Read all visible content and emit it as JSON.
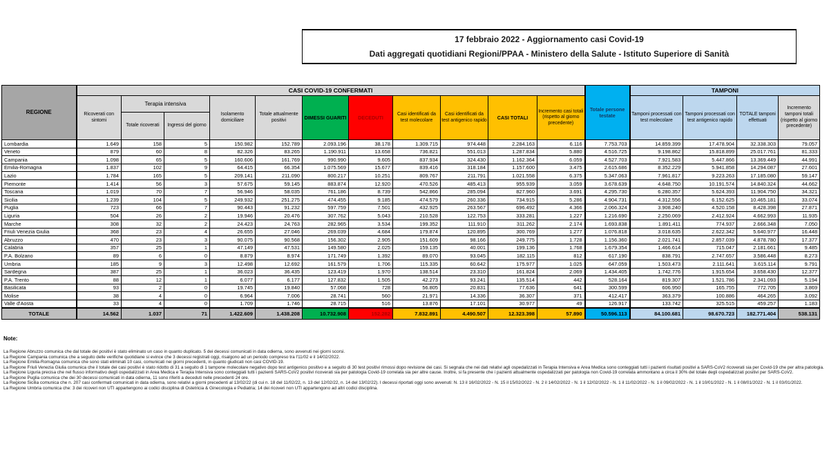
{
  "title": {
    "line1": "17 febbraio 2022 - Aggiornamento casi Covid-19",
    "line2": "Dati aggregati quotidiani Regioni/PPAA - Ministero della Salute - Istituto Superiore di Sanità"
  },
  "colors": {
    "green_dimessi": "#00b050",
    "red_deceduti": "#ff0000",
    "gold_casi": "#ffc000",
    "cyan_testate": "#00b0f0",
    "lightblue_tamponi": "#bdd7ee",
    "gray_regione_header": "#a6a6a6",
    "gray_subheader": "#d9d9d9",
    "gray_total_row": "#bfbfbf"
  },
  "table": {
    "group_casi": "CASI COVID-19 CONFERMATI",
    "group_tamponi": "TAMPONI",
    "col_regione": "REGIONE",
    "col_ricoverati": "Ricoverati con sintomi",
    "col_terapia_intensiva": "Terapia intensiva",
    "col_ti_totale": "Totale ricoverati",
    "col_ti_ingressi": "Ingressi del giorno",
    "col_isolamento": "Isolamento domiciliare",
    "col_attualmente_positivi": "Totale attualmente positivi",
    "col_dimessi": "DIMESSI GUARITI",
    "col_deceduti": "DECEDUTI",
    "col_casi_molecolare": "Casi identificati da test molecolare",
    "col_casi_antigenico": "Casi identificati da test antigenico rapido",
    "col_casi_totali": "CASI TOTALI",
    "col_incremento_casi": "Incremento casi totali (rispetto al giorno precedente)",
    "col_persone_testate": "Totale persone testate",
    "col_tamponi_molecolare": "Tamponi processati con test molecolare",
    "col_tamponi_antigenico": "Tamponi processati con test antigenico rapido",
    "col_tamponi_totale": "TOTALE tamponi effettuati",
    "col_incremento_tamponi": "Incremento tamponi totali (rispetto al giorno precedente)",
    "rows": [
      [
        "Lombardia",
        "1.649",
        "158",
        "5",
        "150.982",
        "152.789",
        "2.093.196",
        "38.178",
        "1.309.715",
        "974.448",
        "2.284.163",
        "6.116",
        "7.753.703",
        "14.859.399",
        "17.478.904",
        "32.338.303",
        "79.057"
      ],
      [
        "Veneto",
        "879",
        "60",
        "8",
        "82.326",
        "83.265",
        "1.190.911",
        "13.658",
        "736.821",
        "551.013",
        "1.287.834",
        "5.880",
        "4.516.725",
        "9.198.862",
        "15.818.899",
        "25.017.761",
        "81.333"
      ],
      [
        "Campania",
        "1.098",
        "65",
        "5",
        "160.606",
        "161.769",
        "990.990",
        "9.605",
        "837.934",
        "324.430",
        "1.162.364",
        "6.059",
        "4.527.703",
        "7.921.583",
        "5.447.866",
        "13.369.449",
        "44.991"
      ],
      [
        "Emilia-Romagna",
        "1.837",
        "102",
        "9",
        "64.415",
        "66.354",
        "1.075.569",
        "15.677",
        "839.416",
        "318.184",
        "1.157.600",
        "3.475",
        "2.615.686",
        "8.352.229",
        "5.941.858",
        "14.294.087",
        "27.601"
      ],
      [
        "Lazio",
        "1.784",
        "165",
        "5",
        "209.141",
        "211.090",
        "800.217",
        "10.251",
        "809.767",
        "211.791",
        "1.021.558",
        "6.375",
        "5.347.063",
        "7.961.817",
        "9.223.263",
        "17.185.080",
        "59.147"
      ],
      [
        "Piemonte",
        "1.414",
        "56",
        "3",
        "57.675",
        "59.145",
        "883.874",
        "12.920",
        "470.526",
        "485.413",
        "955.939",
        "3.059",
        "3.678.639",
        "4.648.750",
        "10.191.574",
        "14.840.324",
        "44.662"
      ],
      [
        "Toscana",
        "1.019",
        "70",
        "7",
        "56.946",
        "58.035",
        "761.186",
        "8.739",
        "542.866",
        "285.094",
        "827.960",
        "3.691",
        "4.295.730",
        "6.280.357",
        "5.624.393",
        "11.904.750",
        "34.321"
      ],
      [
        "Sicilia",
        "1.239",
        "104",
        "5",
        "249.932",
        "251.275",
        "474.455",
        "9.185",
        "474.579",
        "260.336",
        "734.915",
        "5.286",
        "4.904.731",
        "4.312.556",
        "6.152.625",
        "10.465.181",
        "33.074"
      ],
      [
        "Puglia",
        "723",
        "66",
        "7",
        "90.443",
        "91.232",
        "597.759",
        "7.501",
        "432.925",
        "263.567",
        "696.492",
        "4.366",
        "2.066.324",
        "3.908.240",
        "4.520.158",
        "8.428.398",
        "27.871"
      ],
      [
        "Liguria",
        "504",
        "26",
        "2",
        "19.946",
        "20.476",
        "307.762",
        "5.043",
        "210.528",
        "122.753",
        "333.281",
        "1.227",
        "1.216.690",
        "2.250.069",
        "2.412.924",
        "4.662.993",
        "11.935"
      ],
      [
        "Marche",
        "308",
        "32",
        "2",
        "24.423",
        "24.763",
        "282.965",
        "3.534",
        "199.352",
        "111.910",
        "311.262",
        "2.174",
        "1.693.838",
        "1.891.411",
        "774.937",
        "2.666.348",
        "7.050"
      ],
      [
        "Friuli Venezia Giulia",
        "368",
        "23",
        "4",
        "26.655",
        "27.046",
        "269.039",
        "4.684",
        "179.874",
        "120.895",
        "300.769",
        "1.277",
        "1.076.818",
        "3.018.635",
        "2.622.342",
        "5.640.977",
        "16.448"
      ],
      [
        "Abruzzo",
        "470",
        "23",
        "3",
        "90.075",
        "90.568",
        "156.302",
        "2.905",
        "151.609",
        "98.166",
        "249.775",
        "1.728",
        "1.156.360",
        "2.021.741",
        "2.857.039",
        "4.878.780",
        "17.377"
      ],
      [
        "Calabria",
        "357",
        "25",
        "1",
        "47.149",
        "47.531",
        "149.580",
        "2.025",
        "159.135",
        "40.001",
        "199.136",
        "1.768",
        "1.679.354",
        "1.466.614",
        "715.047",
        "2.181.661",
        "9.485"
      ],
      [
        "P.A. Bolzano",
        "89",
        "6",
        "0",
        "8.879",
        "8.974",
        "171.749",
        "1.392",
        "89.070",
        "93.045",
        "182.115",
        "812",
        "617.190",
        "838.791",
        "2.747.657",
        "3.586.448",
        "8.273"
      ],
      [
        "Umbria",
        "185",
        "9",
        "3",
        "12.498",
        "12.692",
        "161.579",
        "1.706",
        "115.335",
        "60.642",
        "175.977",
        "1.025",
        "647.059",
        "1.503.473",
        "2.111.641",
        "3.615.114",
        "9.791"
      ],
      [
        "Sardegna",
        "387",
        "25",
        "1",
        "36.023",
        "36.435",
        "123.419",
        "1.970",
        "138.514",
        "23.310",
        "161.824",
        "2.069",
        "1.434.405",
        "1.742.776",
        "1.915.654",
        "3.658.430",
        "12.377"
      ],
      [
        "P.A. Trento",
        "88",
        "12",
        "1",
        "6.077",
        "6.177",
        "127.832",
        "1.505",
        "42.273",
        "93.241",
        "135.514",
        "442",
        "528.164",
        "819.307",
        "1.521.786",
        "2.341.093",
        "5.194"
      ],
      [
        "Basilicata",
        "93",
        "2",
        "0",
        "19.745",
        "19.840",
        "57.068",
        "728",
        "56.805",
        "20.831",
        "77.636",
        "641",
        "300.599",
        "606.950",
        "165.755",
        "772.705",
        "3.869"
      ],
      [
        "Molise",
        "38",
        "4",
        "0",
        "6.964",
        "7.006",
        "28.741",
        "560",
        "21.971",
        "14.336",
        "36.307",
        "371",
        "412.417",
        "363.379",
        "100.886",
        "464.265",
        "3.092"
      ],
      [
        "Valle d'Aosta",
        "33",
        "4",
        "0",
        "1.709",
        "1.746",
        "28.715",
        "516",
        "13.876",
        "17.101",
        "30.977",
        "49",
        "126.917",
        "133.742",
        "325.515",
        "459.257",
        "1.183"
      ]
    ],
    "total": [
      "TOTALE",
      "14.562",
      "1.037",
      "71",
      "1.422.609",
      "1.438.208",
      "10.732.908",
      "152.282",
      "7.832.891",
      "4.490.507",
      "12.323.398",
      "57.890",
      "50.596.113",
      "84.100.681",
      "98.670.723",
      "182.771.404",
      "538.131"
    ]
  },
  "notes": {
    "heading": "Note:",
    "items": [
      "La Regione Abruzzo  comunica che dal totale dei positivi è stato eliminato un caso in quanto duplicato. 5 dei decessi comunicati in data odierna, sono avvenuti nei giorni scorsi.",
      "La Regione Campania comunica che a seguito delle verifiche quotidiane si evince che 3 decessi registrati oggi, risalgono ad un periodo compreso tra l'11/02 e il 14/02/2022.",
      "La Regione Emilia-Romagna  comunica che sono stati eliminati 10 casi, comunicati nei giorni precedenti, in quanto giudicati non casi COVID-19.",
      "La Regione Friuli Venezia Giulia comunica che il totale dei casi positivi è stato ridotto di 31 a seguito di 1 tampone molecolare negativo dopo test antigenico positivo e a seguito di 30 test positivi rimossi dopo revisione dei casi. Si segnala che nei dati relativi agli ospedalizzati in Terapia Intensiva e Area Medica sono conteggiati tutti i pazienti risultati positivi a SARS-CoV2 ricoverati sia per Covid-19 che per altra patologia.",
      "La Regione Liguria precisa che nel flusso informativo degli ospedalizzati in Area Medica e Terapia Intensiva sono conteggiati tutti i pazienti SARS-CoV2 positivi ricoverati sia per patologia Covid-19 correlata sia per altre cause. Inoltre, si fa presente che i pazienti attualmente ospedalizzati per patologia non Covid-19 correlata ammontano a circa il 30% del totale degli ospedalizzati positivi per SARS-CoV2.",
      "La Regione Puglia comunica che dei 30 decessi comunicati in data odierna, 11 sono riferiti a deceduti nelle precedenti 24 ore.",
      "La Regione Sicilia comunica che n. 207 casi confermati comunicati in data odierna,  sono relativi a giorni precedenti al 13/02/22 (di cui n. 18 del 11/02/22, n. 13 del 12/02/22, n. 14 del 13/02/22). I decessi riportati oggi sono avvenuti: N. 13 il 16/02/2022 - N. 15 il 15/02/2022 - N. 2 il 14/02/2022 - N. 1 il 12/02/2022 - N. 1 il 11/02/2022 - N. 1 il 09/02/2022 - N. 1 il 10/01/2022 - N. 1 il 08/01/2022 - N. 1 il 03/01/2022.",
      "La Regione Umbria comunica che: 3 dei ricoveri non UTI appartengono ai codici disciplina di Ostetricia & Ginecologia e Pediatria; 14 dei ricoveri non UTI appartengono ad altri codici disciplina."
    ]
  }
}
